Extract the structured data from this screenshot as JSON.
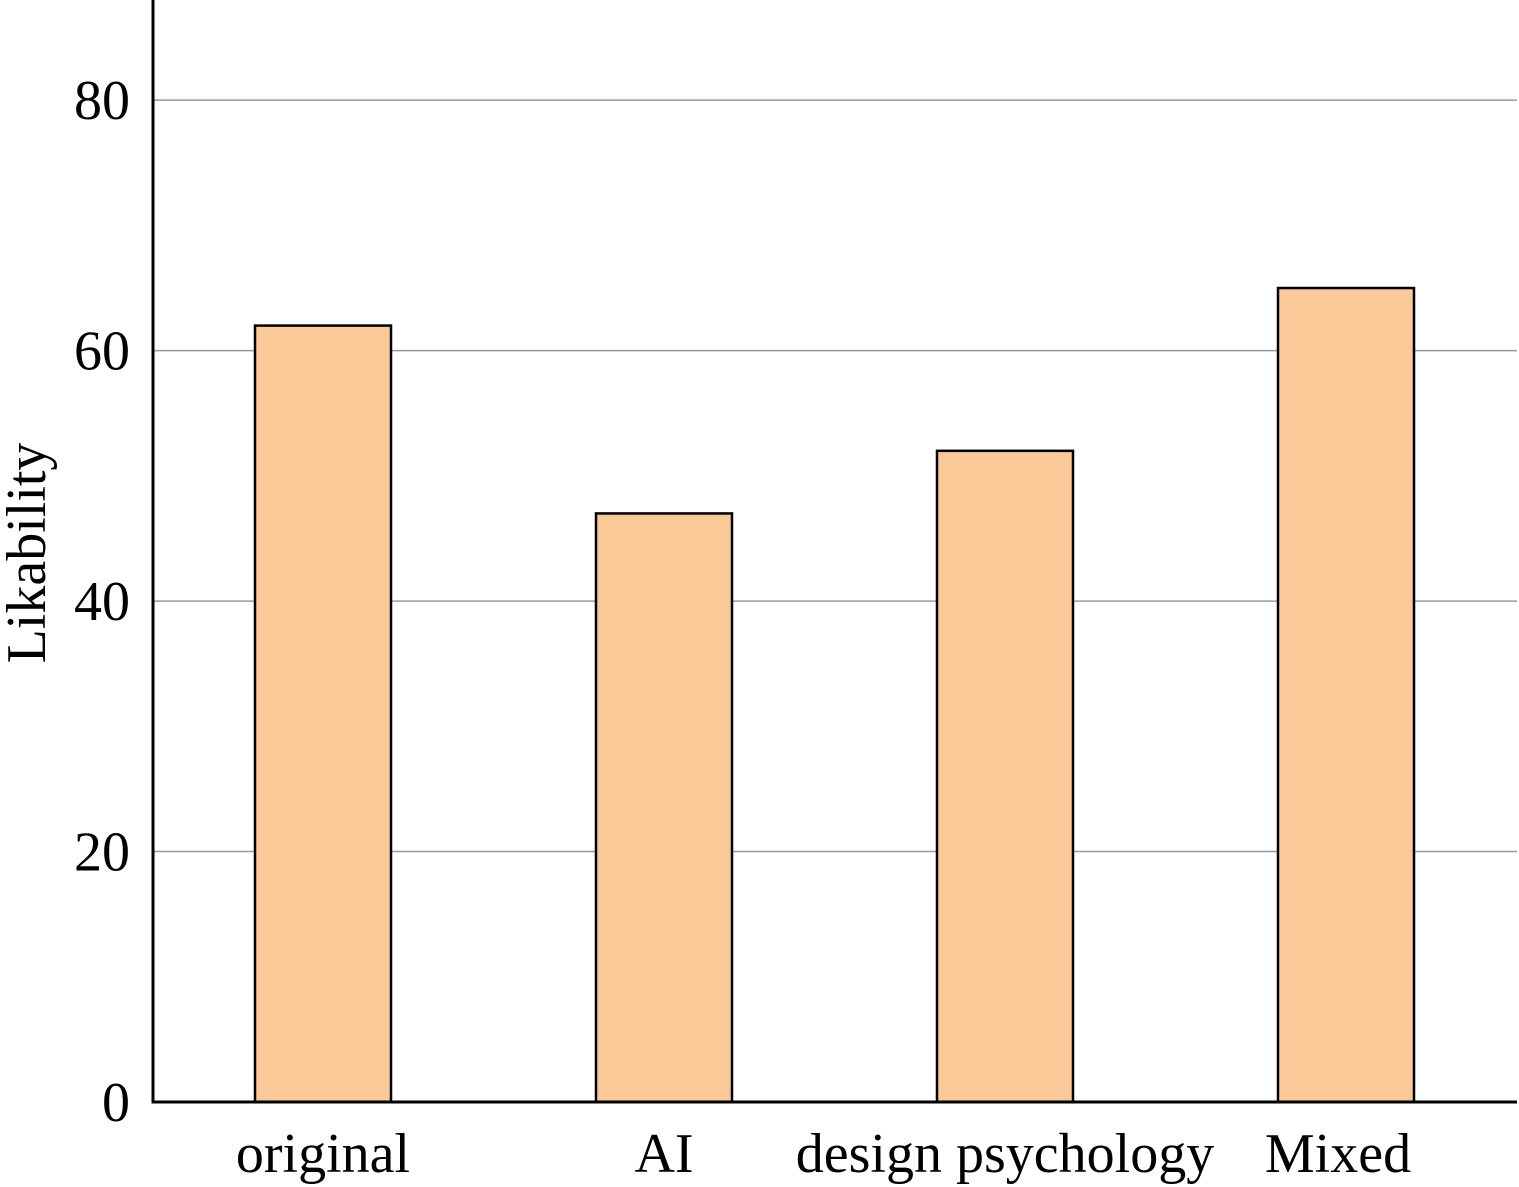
{
  "chart_data": {
    "type": "bar",
    "title": "",
    "xlabel": "",
    "ylabel": "Likability",
    "categories": [
      "original",
      "AI",
      "design psychology",
      "Mixed"
    ],
    "values": [
      62,
      47,
      52,
      65
    ],
    "ylim": [
      0,
      88
    ],
    "yticks": [
      0,
      20,
      40,
      60,
      80
    ],
    "grid": true,
    "legend": "none",
    "bar_color": "#fbc897",
    "bar_edge_color": "#000000",
    "grid_color": "#9a9a9a"
  }
}
